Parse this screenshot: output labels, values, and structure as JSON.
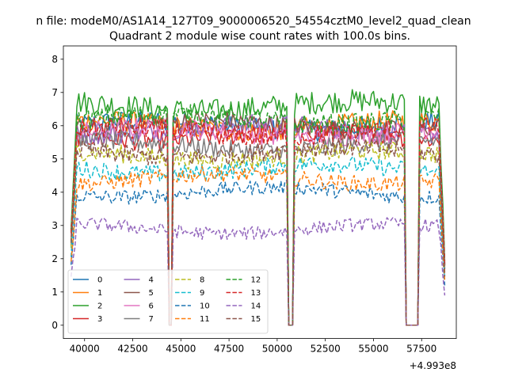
{
  "figure": {
    "suptitle": "n file: modeM0/AS1A14_127T09_9000006520_54554cztM0_level2_quad_clean"
  },
  "chart_data": {
    "type": "line",
    "title": "Quadrant 2 module wise count rates with 100.0s bins.",
    "xlabel": "",
    "ylabel": "",
    "x_offset_label": "+4.993e8",
    "xlim": [
      38900,
      59300
    ],
    "ylim": [
      -0.4,
      8.4
    ],
    "xticks": [
      40000,
      42500,
      45000,
      47500,
      50000,
      52500,
      55000,
      57500
    ],
    "xtick_labels": [
      "40000",
      "42500",
      "45000",
      "47500",
      "50000",
      "52500",
      "55000",
      "57500"
    ],
    "yticks": [
      0,
      1,
      2,
      3,
      4,
      5,
      6,
      7,
      8
    ],
    "ytick_labels": [
      "0",
      "1",
      "2",
      "3",
      "4",
      "5",
      "6",
      "7",
      "8"
    ],
    "x_start": 39300,
    "x_end": 58700,
    "bin": 100,
    "gaps": [
      {
        "start": 44350,
        "end": 44500
      },
      {
        "start": 50550,
        "end": 50850
      },
      {
        "start": 56700,
        "end": 57350
      }
    ],
    "legend": {
      "placement": "lower-left",
      "ncol": 4
    },
    "series": [
      {
        "name": "0",
        "color": "#1f77b4",
        "style": "solid",
        "level": 6.0,
        "amp": 0.32
      },
      {
        "name": "1",
        "color": "#ff7f0e",
        "style": "solid",
        "level": 6.0,
        "amp": 0.32
      },
      {
        "name": "2",
        "color": "#2ca02c",
        "style": "solid",
        "level": 6.6,
        "amp": 0.35
      },
      {
        "name": "3",
        "color": "#d62728",
        "style": "solid",
        "level": 5.7,
        "amp": 0.3
      },
      {
        "name": "4",
        "color": "#9467bd",
        "style": "solid",
        "level": 5.9,
        "amp": 0.3
      },
      {
        "name": "5",
        "color": "#8c564b",
        "style": "solid",
        "level": 6.0,
        "amp": 0.3
      },
      {
        "name": "6",
        "color": "#e377c2",
        "style": "solid",
        "level": 5.8,
        "amp": 0.3
      },
      {
        "name": "7",
        "color": "#7f7f7f",
        "style": "solid",
        "level": 5.4,
        "amp": 0.28
      },
      {
        "name": "8",
        "color": "#bcbd22",
        "style": "dashed",
        "level": 5.1,
        "amp": 0.28
      },
      {
        "name": "9",
        "color": "#17becf",
        "style": "dashed",
        "level": 4.7,
        "amp": 0.26
      },
      {
        "name": "10",
        "color": "#1f77b4",
        "style": "dashed",
        "level": 4.0,
        "amp": 0.22
      },
      {
        "name": "11",
        "color": "#ff7f0e",
        "style": "dashed",
        "level": 4.4,
        "amp": 0.24
      },
      {
        "name": "12",
        "color": "#2ca02c",
        "style": "dashed",
        "level": 6.2,
        "amp": 0.3
      },
      {
        "name": "13",
        "color": "#d62728",
        "style": "dashed",
        "level": 5.8,
        "amp": 0.3
      },
      {
        "name": "14",
        "color": "#9467bd",
        "style": "dashed",
        "level": 2.9,
        "amp": 0.2
      },
      {
        "name": "15",
        "color": "#8c564b",
        "style": "dashed",
        "level": 5.2,
        "amp": 0.28
      }
    ]
  }
}
